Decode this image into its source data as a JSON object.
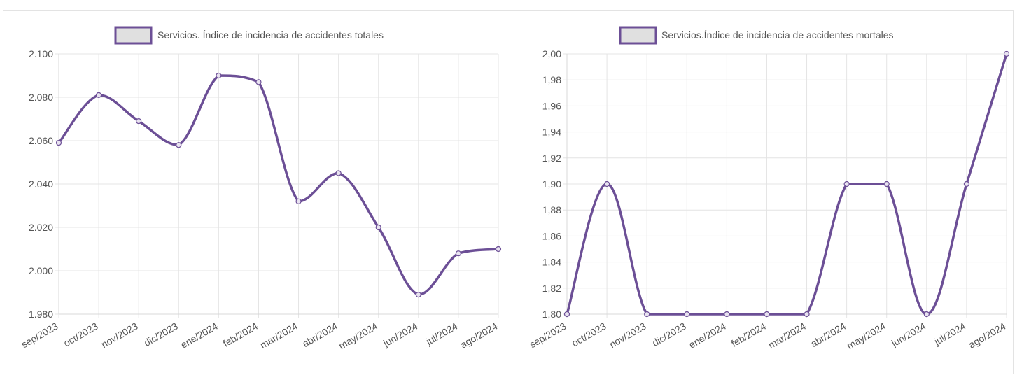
{
  "colors": {
    "line": "#6c4f96",
    "legend_fill": "#e0e0e0",
    "grid": "#e4e4e4",
    "point_fill": "#e8e2f0"
  },
  "chart_data": [
    {
      "type": "line",
      "legend": "Servicios. Índice de incidencia de accidentes totales",
      "categories": [
        "sep/2023",
        "oct/2023",
        "nov/2023",
        "dic/2023",
        "ene/2024",
        "feb/2024",
        "mar/2024",
        "abr/2024",
        "may/2024",
        "jun/2024",
        "jul/2024",
        "ago/2024"
      ],
      "series": [
        {
          "name": "Servicios. Índice de incidencia de accidentes totales",
          "values": [
            2059,
            2081,
            2069,
            2058,
            2090,
            2087,
            2032,
            2045,
            2020,
            1989,
            2008,
            2010
          ]
        }
      ],
      "ylim": [
        1980,
        2100
      ],
      "yticks": [
        1980,
        2000,
        2020,
        2040,
        2060,
        2080,
        2100
      ],
      "ytick_labels": [
        "1.980",
        "2.000",
        "2.020",
        "2.040",
        "2.060",
        "2.080",
        "2.100"
      ],
      "legend_position": "top-center",
      "grid": true
    },
    {
      "type": "line",
      "legend": "Servicios.Índice de incidencia de accidentes mortales",
      "categories": [
        "sep/2023",
        "oct/2023",
        "nov/2023",
        "dic/2023",
        "ene/2024",
        "feb/2024",
        "mar/2024",
        "abr/2024",
        "may/2024",
        "jun/2024",
        "jul/2024",
        "ago/2024"
      ],
      "series": [
        {
          "name": "Servicios.Índice de incidencia de accidentes mortales",
          "values": [
            1.8,
            1.9,
            1.8,
            1.8,
            1.8,
            1.8,
            1.8,
            1.9,
            1.9,
            1.8,
            1.9,
            2.0
          ]
        }
      ],
      "ylim": [
        1.8,
        2.0
      ],
      "yticks": [
        1.8,
        1.82,
        1.84,
        1.86,
        1.88,
        1.9,
        1.92,
        1.94,
        1.96,
        1.98,
        2.0
      ],
      "ytick_labels": [
        "1,80",
        "1,82",
        "1,84",
        "1,86",
        "1,88",
        "1,90",
        "1,92",
        "1,94",
        "1,96",
        "1,98",
        "2,00"
      ],
      "legend_position": "top-center",
      "grid": true
    }
  ]
}
